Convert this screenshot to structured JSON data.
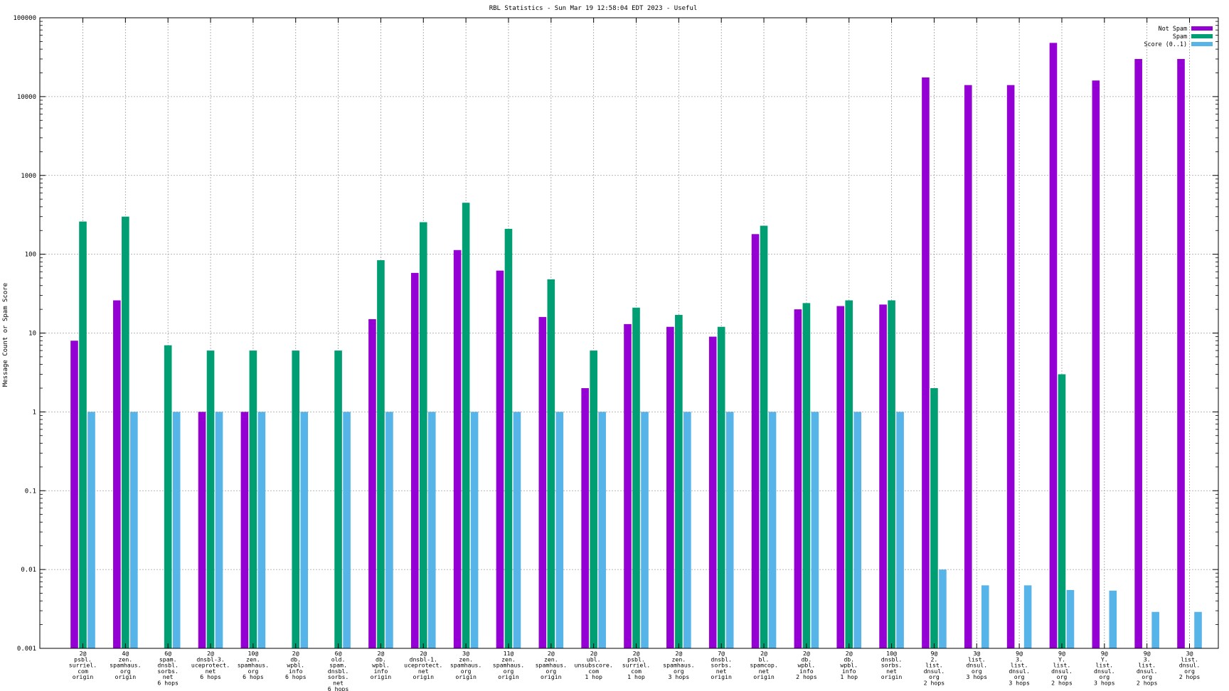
{
  "chart_data": {
    "type": "bar",
    "title": "RBL Statistics - Sun Mar 19 12:58:04 EDT 2023 - Useful",
    "ylabel": "Message Count or Spam Score",
    "xlabel": "",
    "y_scale": "log",
    "ylim": [
      0.001,
      100000
    ],
    "y_ticks": [
      "0.001",
      "0.01",
      "0.1",
      "1",
      "10",
      "100",
      "1000",
      "10000",
      "100000"
    ],
    "grid": true,
    "legend_position": "top-right",
    "categories": [
      [
        "2@",
        "psbl.",
        "surriel.",
        "com",
        "origin"
      ],
      [
        "4@",
        "zen.",
        "spamhaus.",
        "org",
        "origin"
      ],
      [
        "6@",
        "spam.",
        "dnsbl.",
        "sorbs.",
        "net",
        "6 hops"
      ],
      [
        "2@",
        "dnsbl-3.",
        "uceprotect.",
        "net",
        "6 hops"
      ],
      [
        "10@",
        "zen.",
        "spamhaus.",
        "org",
        "6 hops"
      ],
      [
        "2@",
        "db.",
        "wpbl.",
        "info",
        "6 hops"
      ],
      [
        "6@",
        "old.",
        "spam.",
        "dnsbl.",
        "sorbs.",
        "net",
        "6 hops"
      ],
      [
        "2@",
        "db.",
        "wpbl.",
        "info",
        "origin"
      ],
      [
        "2@",
        "dnsbl-1.",
        "uceprotect.",
        "net",
        "origin"
      ],
      [
        "3@",
        "zen.",
        "spamhaus.",
        "org",
        "origin"
      ],
      [
        "11@",
        "zen.",
        "spamhaus.",
        "org",
        "origin"
      ],
      [
        "2@",
        "zen.",
        "spamhaus.",
        "org",
        "origin"
      ],
      [
        "2@",
        "ubl.",
        "unsubscore.",
        "com",
        "1 hop"
      ],
      [
        "2@",
        "psbl.",
        "surriel.",
        "com",
        "1 hop"
      ],
      [
        "2@",
        "zen.",
        "spamhaus.",
        "org",
        "3 hops"
      ],
      [
        "7@",
        "dnsbl.",
        "sorbs.",
        "net",
        "origin"
      ],
      [
        "2@",
        "bl.",
        "spamcop.",
        "net",
        "origin"
      ],
      [
        "2@",
        "db.",
        "wpbl.",
        "info",
        "2 hops"
      ],
      [
        "2@",
        "db.",
        "wpbl.",
        "info",
        "1 hop"
      ],
      [
        "10@",
        "dnsbl.",
        "sorbs.",
        "net",
        "origin"
      ],
      [
        "9@",
        "2.",
        "list.",
        "dnsul.",
        "org",
        "2 hops"
      ],
      [
        "3@",
        "list.",
        "dnsul.",
        "org",
        "3 hops"
      ],
      [
        "9@",
        "3.",
        "list.",
        "dnsul.",
        "org",
        "3 hops"
      ],
      [
        "9@",
        "Y.",
        "list.",
        "dnsul.",
        "org",
        "2 hops"
      ],
      [
        "9@",
        "Y.",
        "list.",
        "dnsul.",
        "org",
        "3 hops"
      ],
      [
        "9@",
        "3.",
        "list.",
        "dnsul.",
        "org",
        "2 hops"
      ],
      [
        "3@",
        "list.",
        "dnsul.",
        "org",
        "2 hops"
      ]
    ],
    "series": [
      {
        "name": "Not Spam",
        "color": "#9400d3",
        "values": [
          8,
          26,
          null,
          1,
          1,
          null,
          null,
          15,
          58,
          113,
          62,
          16,
          2,
          13,
          12,
          9,
          180,
          20,
          22,
          23,
          17500,
          14000,
          14000,
          48000,
          16000,
          30000,
          30000
        ]
      },
      {
        "name": "Spam",
        "color": "#009e73",
        "values": [
          260,
          300,
          7,
          6,
          6,
          6,
          6,
          84,
          255,
          450,
          210,
          48,
          6,
          21,
          17,
          12,
          230,
          24,
          26,
          26,
          2,
          null,
          null,
          3,
          null,
          null,
          null
        ]
      },
      {
        "name": "Score (0..1)",
        "color": "#56b4e9",
        "values": [
          1,
          1,
          1,
          1,
          1,
          1,
          1,
          1,
          1,
          1,
          1,
          1,
          1,
          1,
          1,
          1,
          1,
          1,
          1,
          1,
          0.01,
          0.0063,
          0.0063,
          0.0055,
          0.0054,
          0.0029,
          0.0029
        ]
      }
    ]
  }
}
